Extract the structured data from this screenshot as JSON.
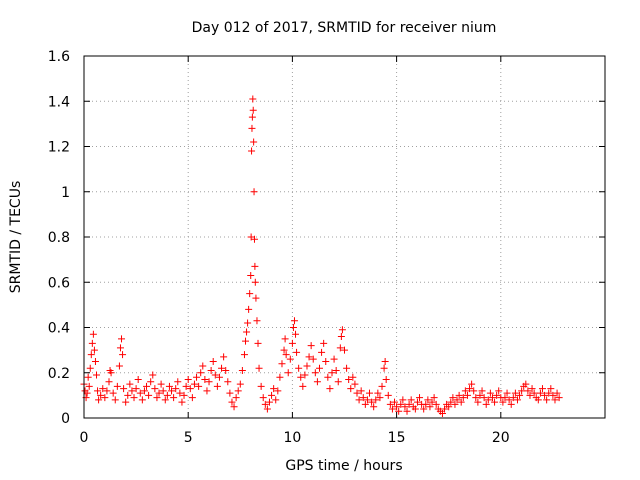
{
  "chart_data": {
    "type": "scatter",
    "title": "Day 012 of 2017, SRMTID for receiver nium",
    "xlabel": "GPS time / hours",
    "ylabel": "SRMTID / TECUs",
    "xlim": [
      0,
      25
    ],
    "ylim": [
      0,
      1.6
    ],
    "xticks": [
      0,
      5,
      10,
      15,
      20
    ],
    "xtick_labels": [
      "0",
      "5",
      "10",
      "15",
      "20"
    ],
    "yticks": [
      0,
      0.2,
      0.4,
      0.6,
      0.8,
      1.0,
      1.2,
      1.4,
      1.6
    ],
    "ytick_labels": [
      "0",
      "0.2",
      "0.4",
      "0.6",
      "0.8",
      "1",
      "1.2",
      "1.4",
      "1.6"
    ],
    "grid": true,
    "marker": "+",
    "color": "#ff0000",
    "series": [
      {
        "name": "SRMTID",
        "points": [
          [
            0.0,
            0.15
          ],
          [
            0.05,
            0.12
          ],
          [
            0.1,
            0.09
          ],
          [
            0.15,
            0.11
          ],
          [
            0.2,
            0.18
          ],
          [
            0.25,
            0.14
          ],
          [
            0.3,
            0.22
          ],
          [
            0.35,
            0.28
          ],
          [
            0.4,
            0.33
          ],
          [
            0.45,
            0.37
          ],
          [
            0.5,
            0.3
          ],
          [
            0.55,
            0.25
          ],
          [
            0.6,
            0.19
          ],
          [
            0.65,
            0.12
          ],
          [
            0.7,
            0.08
          ],
          [
            0.8,
            0.1
          ],
          [
            0.9,
            0.13
          ],
          [
            1.0,
            0.09
          ],
          [
            1.1,
            0.12
          ],
          [
            1.2,
            0.16
          ],
          [
            1.25,
            0.21
          ],
          [
            1.3,
            0.2
          ],
          [
            1.4,
            0.11
          ],
          [
            1.5,
            0.08
          ],
          [
            1.6,
            0.14
          ],
          [
            1.7,
            0.23
          ],
          [
            1.75,
            0.31
          ],
          [
            1.8,
            0.35
          ],
          [
            1.85,
            0.28
          ],
          [
            1.9,
            0.13
          ],
          [
            2.0,
            0.07
          ],
          [
            2.1,
            0.1
          ],
          [
            2.2,
            0.15
          ],
          [
            2.3,
            0.12
          ],
          [
            2.4,
            0.09
          ],
          [
            2.5,
            0.13
          ],
          [
            2.6,
            0.17
          ],
          [
            2.7,
            0.11
          ],
          [
            2.8,
            0.08
          ],
          [
            2.9,
            0.12
          ],
          [
            3.0,
            0.14
          ],
          [
            3.1,
            0.1
          ],
          [
            3.2,
            0.16
          ],
          [
            3.3,
            0.19
          ],
          [
            3.4,
            0.13
          ],
          [
            3.5,
            0.09
          ],
          [
            3.6,
            0.11
          ],
          [
            3.7,
            0.15
          ],
          [
            3.8,
            0.12
          ],
          [
            3.9,
            0.08
          ],
          [
            4.0,
            0.1
          ],
          [
            4.1,
            0.14
          ],
          [
            4.2,
            0.12
          ],
          [
            4.3,
            0.09
          ],
          [
            4.4,
            0.13
          ],
          [
            4.5,
            0.16
          ],
          [
            4.6,
            0.11
          ],
          [
            4.7,
            0.07
          ],
          [
            4.8,
            0.1
          ],
          [
            4.9,
            0.14
          ],
          [
            5.0,
            0.17
          ],
          [
            5.1,
            0.13
          ],
          [
            5.2,
            0.09
          ],
          [
            5.3,
            0.15
          ],
          [
            5.4,
            0.18
          ],
          [
            5.5,
            0.14
          ],
          [
            5.6,
            0.2
          ],
          [
            5.7,
            0.23
          ],
          [
            5.8,
            0.17
          ],
          [
            5.9,
            0.12
          ],
          [
            6.0,
            0.16
          ],
          [
            6.1,
            0.21
          ],
          [
            6.2,
            0.25
          ],
          [
            6.3,
            0.19
          ],
          [
            6.4,
            0.14
          ],
          [
            6.5,
            0.18
          ],
          [
            6.6,
            0.22
          ],
          [
            6.7,
            0.27
          ],
          [
            6.8,
            0.21
          ],
          [
            6.9,
            0.16
          ],
          [
            7.0,
            0.11
          ],
          [
            7.1,
            0.07
          ],
          [
            7.2,
            0.05
          ],
          [
            7.3,
            0.09
          ],
          [
            7.4,
            0.12
          ],
          [
            7.5,
            0.15
          ],
          [
            7.6,
            0.21
          ],
          [
            7.7,
            0.28
          ],
          [
            7.75,
            0.34
          ],
          [
            7.8,
            0.38
          ],
          [
            7.85,
            0.42
          ],
          [
            7.9,
            0.48
          ],
          [
            7.95,
            0.55
          ],
          [
            8.0,
            0.63
          ],
          [
            8.02,
            0.8
          ],
          [
            8.04,
            1.18
          ],
          [
            8.06,
            1.28
          ],
          [
            8.08,
            1.33
          ],
          [
            8.1,
            1.41
          ],
          [
            8.12,
            1.36
          ],
          [
            8.14,
            1.22
          ],
          [
            8.16,
            1.0
          ],
          [
            8.18,
            0.79
          ],
          [
            8.2,
            0.67
          ],
          [
            8.22,
            0.6
          ],
          [
            8.25,
            0.53
          ],
          [
            8.3,
            0.43
          ],
          [
            8.35,
            0.33
          ],
          [
            8.4,
            0.22
          ],
          [
            8.5,
            0.14
          ],
          [
            8.6,
            0.09
          ],
          [
            8.7,
            0.06
          ],
          [
            8.8,
            0.04
          ],
          [
            8.9,
            0.07
          ],
          [
            9.0,
            0.1
          ],
          [
            9.1,
            0.13
          ],
          [
            9.2,
            0.08
          ],
          [
            9.3,
            0.12
          ],
          [
            9.4,
            0.18
          ],
          [
            9.5,
            0.24
          ],
          [
            9.6,
            0.3
          ],
          [
            9.65,
            0.35
          ],
          [
            9.7,
            0.28
          ],
          [
            9.8,
            0.2
          ],
          [
            9.9,
            0.26
          ],
          [
            10.0,
            0.33
          ],
          [
            10.05,
            0.4
          ],
          [
            10.1,
            0.43
          ],
          [
            10.15,
            0.37
          ],
          [
            10.2,
            0.29
          ],
          [
            10.3,
            0.22
          ],
          [
            10.4,
            0.18
          ],
          [
            10.5,
            0.14
          ],
          [
            10.6,
            0.19
          ],
          [
            10.7,
            0.23
          ],
          [
            10.8,
            0.27
          ],
          [
            10.9,
            0.32
          ],
          [
            11.0,
            0.26
          ],
          [
            11.1,
            0.2
          ],
          [
            11.2,
            0.16
          ],
          [
            11.3,
            0.22
          ],
          [
            11.4,
            0.29
          ],
          [
            11.5,
            0.33
          ],
          [
            11.6,
            0.25
          ],
          [
            11.7,
            0.18
          ],
          [
            11.8,
            0.13
          ],
          [
            11.9,
            0.2
          ],
          [
            12.0,
            0.26
          ],
          [
            12.1,
            0.21
          ],
          [
            12.2,
            0.16
          ],
          [
            12.3,
            0.31
          ],
          [
            12.35,
            0.36
          ],
          [
            12.4,
            0.39
          ],
          [
            12.5,
            0.3
          ],
          [
            12.6,
            0.22
          ],
          [
            12.7,
            0.17
          ],
          [
            12.8,
            0.13
          ],
          [
            12.9,
            0.18
          ],
          [
            13.0,
            0.15
          ],
          [
            13.1,
            0.11
          ],
          [
            13.2,
            0.08
          ],
          [
            13.3,
            0.12
          ],
          [
            13.4,
            0.09
          ],
          [
            13.5,
            0.06
          ],
          [
            13.6,
            0.08
          ],
          [
            13.7,
            0.11
          ],
          [
            13.8,
            0.07
          ],
          [
            13.9,
            0.05
          ],
          [
            14.0,
            0.08
          ],
          [
            14.1,
            0.11
          ],
          [
            14.2,
            0.09
          ],
          [
            14.3,
            0.14
          ],
          [
            14.4,
            0.22
          ],
          [
            14.45,
            0.25
          ],
          [
            14.5,
            0.17
          ],
          [
            14.6,
            0.1
          ],
          [
            14.7,
            0.06
          ],
          [
            14.8,
            0.04
          ],
          [
            14.9,
            0.07
          ],
          [
            15.0,
            0.05
          ],
          [
            15.1,
            0.03
          ],
          [
            15.2,
            0.06
          ],
          [
            15.3,
            0.08
          ],
          [
            15.4,
            0.05
          ],
          [
            15.5,
            0.03
          ],
          [
            15.6,
            0.06
          ],
          [
            15.7,
            0.08
          ],
          [
            15.8,
            0.05
          ],
          [
            15.9,
            0.04
          ],
          [
            16.0,
            0.07
          ],
          [
            16.1,
            0.09
          ],
          [
            16.2,
            0.06
          ],
          [
            16.3,
            0.04
          ],
          [
            16.4,
            0.06
          ],
          [
            16.5,
            0.08
          ],
          [
            16.6,
            0.05
          ],
          [
            16.7,
            0.07
          ],
          [
            16.8,
            0.09
          ],
          [
            16.9,
            0.06
          ],
          [
            17.0,
            0.04
          ],
          [
            17.1,
            0.03
          ],
          [
            17.2,
            0.02
          ],
          [
            17.3,
            0.04
          ],
          [
            17.4,
            0.06
          ],
          [
            17.5,
            0.05
          ],
          [
            17.6,
            0.07
          ],
          [
            17.7,
            0.09
          ],
          [
            17.8,
            0.06
          ],
          [
            17.9,
            0.08
          ],
          [
            18.0,
            0.1
          ],
          [
            18.1,
            0.07
          ],
          [
            18.2,
            0.09
          ],
          [
            18.3,
            0.12
          ],
          [
            18.4,
            0.1
          ],
          [
            18.5,
            0.13
          ],
          [
            18.6,
            0.15
          ],
          [
            18.7,
            0.12
          ],
          [
            18.8,
            0.09
          ],
          [
            18.9,
            0.07
          ],
          [
            19.0,
            0.1
          ],
          [
            19.1,
            0.12
          ],
          [
            19.2,
            0.09
          ],
          [
            19.3,
            0.06
          ],
          [
            19.4,
            0.08
          ],
          [
            19.5,
            0.11
          ],
          [
            19.6,
            0.09
          ],
          [
            19.7,
            0.07
          ],
          [
            19.8,
            0.1
          ],
          [
            19.9,
            0.12
          ],
          [
            20.0,
            0.09
          ],
          [
            20.1,
            0.07
          ],
          [
            20.2,
            0.09
          ],
          [
            20.3,
            0.11
          ],
          [
            20.4,
            0.08
          ],
          [
            20.5,
            0.06
          ],
          [
            20.6,
            0.09
          ],
          [
            20.7,
            0.11
          ],
          [
            20.8,
            0.08
          ],
          [
            20.9,
            0.1
          ],
          [
            21.0,
            0.12
          ],
          [
            21.1,
            0.14
          ],
          [
            21.2,
            0.15
          ],
          [
            21.3,
            0.12
          ],
          [
            21.4,
            0.1
          ],
          [
            21.5,
            0.13
          ],
          [
            21.6,
            0.11
          ],
          [
            21.7,
            0.09
          ],
          [
            21.8,
            0.08
          ],
          [
            21.9,
            0.11
          ],
          [
            22.0,
            0.13
          ],
          [
            22.1,
            0.1
          ],
          [
            22.2,
            0.08
          ],
          [
            22.3,
            0.11
          ],
          [
            22.4,
            0.13
          ],
          [
            22.5,
            0.1
          ],
          [
            22.6,
            0.08
          ],
          [
            22.7,
            0.11
          ],
          [
            22.8,
            0.09
          ]
        ]
      }
    ]
  }
}
